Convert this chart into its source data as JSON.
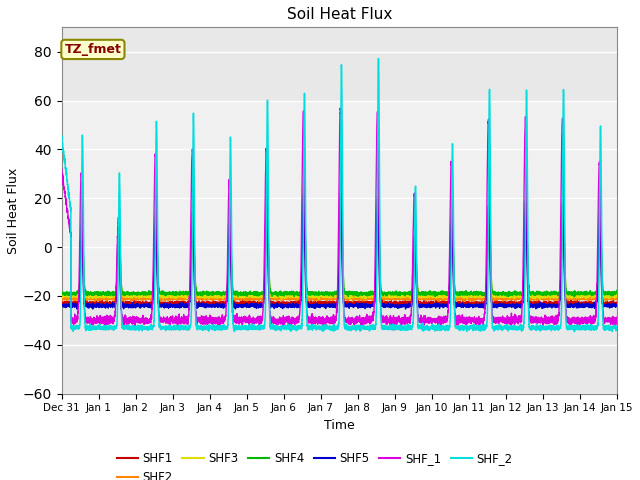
{
  "title": "Soil Heat Flux",
  "xlabel": "Time",
  "ylabel": "Soil Heat Flux",
  "xlim_days": [
    0,
    15
  ],
  "ylim": [
    -60,
    90
  ],
  "yticks": [
    -60,
    -40,
    -20,
    0,
    20,
    40,
    60,
    80
  ],
  "xtick_labels": [
    "Dec 31",
    "Jan 1",
    "Jan 2",
    "Jan 3",
    "Jan 4",
    "Jan 5",
    "Jan 6",
    "Jan 7",
    "Jan 8",
    "Jan 9",
    "Jan 10",
    "Jan 11",
    "Jan 12",
    "Jan 13",
    "Jan 14",
    "Jan 15"
  ],
  "xtick_positions": [
    0,
    1,
    2,
    3,
    4,
    5,
    6,
    7,
    8,
    9,
    10,
    11,
    12,
    13,
    14,
    15
  ],
  "series_colors": {
    "SHF1": "#cc0000",
    "SHF2": "#ff8800",
    "SHF3": "#dddd00",
    "SHF4": "#00bb00",
    "SHF5": "#0000cc",
    "SHF_1": "#dd00dd",
    "SHF_2": "#00dddd"
  },
  "annotation_text": "TZ_fmet",
  "annotation_color": "#880000",
  "annotation_bg": "#ffffcc",
  "annotation_border": "#888800",
  "plot_bg": "#e8e8e8",
  "grid_color": "#ffffff",
  "fig_bg": "#ffffff"
}
